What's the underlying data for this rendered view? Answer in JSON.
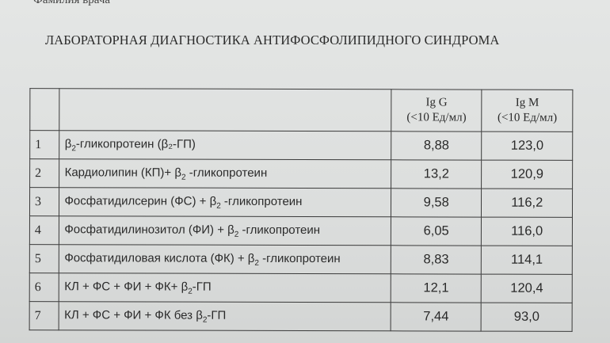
{
  "doctor_label": "Фамилия врача",
  "title": "ЛАБОРАТОРНАЯ ДИАГНОСТИКА АНТИФОСФОЛИПИДНОГО СИНДРОМА",
  "table": {
    "headers": [
      {
        "name": "Ig G",
        "ref": "(<10  Ед/мл)"
      },
      {
        "name": "Ig M",
        "ref": "(<10  Ед/мл)"
      }
    ],
    "rows": [
      {
        "n": "1",
        "pre": "β",
        "sub": "2",
        "post": "-гликопротеин (β₂-ГП)",
        "igg": "8,88",
        "igm": "123,0"
      },
      {
        "n": "2",
        "pre": "Кардиолипин (КП)+ β",
        "sub": "2",
        "post": " -гликопротеин",
        "igg": "13,2",
        "igm": "120,9"
      },
      {
        "n": "3",
        "pre": "Фосфатидилсерин (ФС) + β",
        "sub": "2",
        "post": " -гликопротеин",
        "igg": "9,58",
        "igm": "116,2"
      },
      {
        "n": "4",
        "pre": "Фосфатидилинозитол (ФИ) + β",
        "sub": "2",
        "post": " -гликопротеин",
        "igg": "6,05",
        "igm": "116,0"
      },
      {
        "n": "5",
        "pre": "Фосфатидиловая кислота (ФК) + β",
        "sub": "2",
        "post": " -гликопротеин",
        "igg": "8,83",
        "igm": "114,1"
      },
      {
        "n": "6",
        "pre": "КЛ + ФС + ФИ + ФК+ β",
        "sub": "2",
        "post": "-ГП",
        "igg": "12,1",
        "igm": "120,4"
      },
      {
        "n": "7",
        "pre": "КЛ + ФС + ФИ + ФК без β",
        "sub": "2",
        "post": "-ГП",
        "igg": "7,44",
        "igm": "93,0"
      }
    ]
  }
}
